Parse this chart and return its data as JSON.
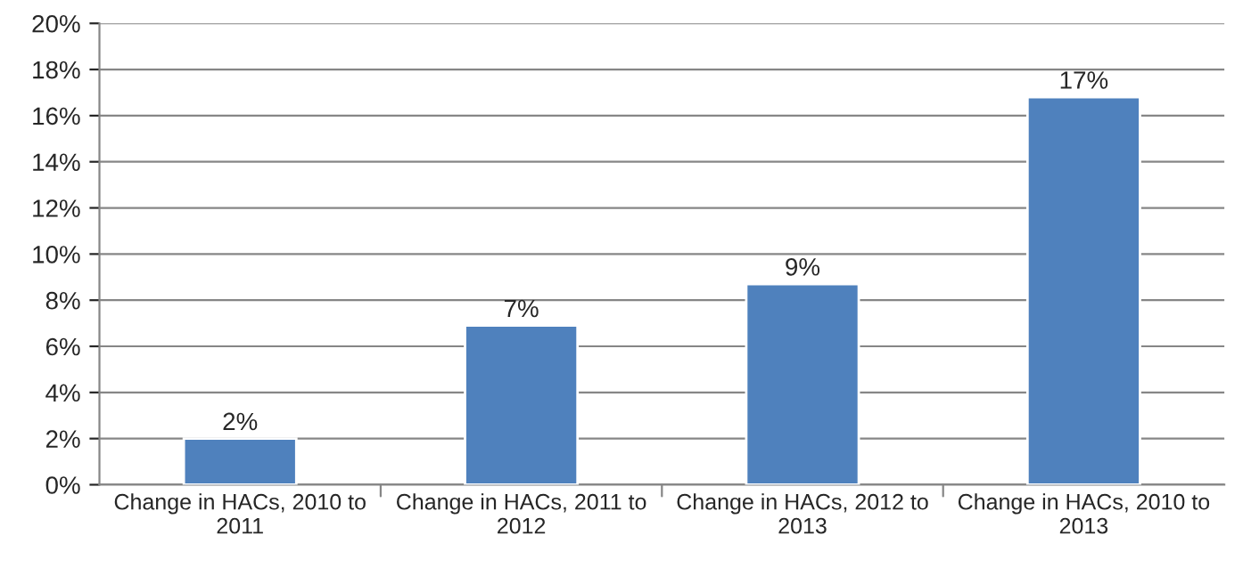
{
  "chart_data": {
    "type": "bar",
    "categories": [
      "Change in HACs, 2010 to 2011",
      "Change in HACs, 2011 to 2012",
      "Change in HACs, 2012 to 2013",
      "Change in HACs, 2010 to 2013"
    ],
    "values": [
      2.0,
      6.9,
      8.7,
      16.8
    ],
    "value_labels": [
      "2%",
      "7%",
      "9%",
      "17%"
    ],
    "color": "#4f81bd",
    "ylim": [
      0,
      20
    ],
    "yticks": [
      {
        "value": 0,
        "label": "0%"
      },
      {
        "value": 2,
        "label": "2%"
      },
      {
        "value": 4,
        "label": "4%"
      },
      {
        "value": 6,
        "label": "6%"
      },
      {
        "value": 8,
        "label": "8%"
      },
      {
        "value": 10,
        "label": "10%"
      },
      {
        "value": 12,
        "label": "12%"
      },
      {
        "value": 14,
        "label": "14%"
      },
      {
        "value": 16,
        "label": "16%"
      },
      {
        "value": 18,
        "label": "18%"
      },
      {
        "value": 20,
        "label": "20%"
      }
    ],
    "grid": "y"
  }
}
